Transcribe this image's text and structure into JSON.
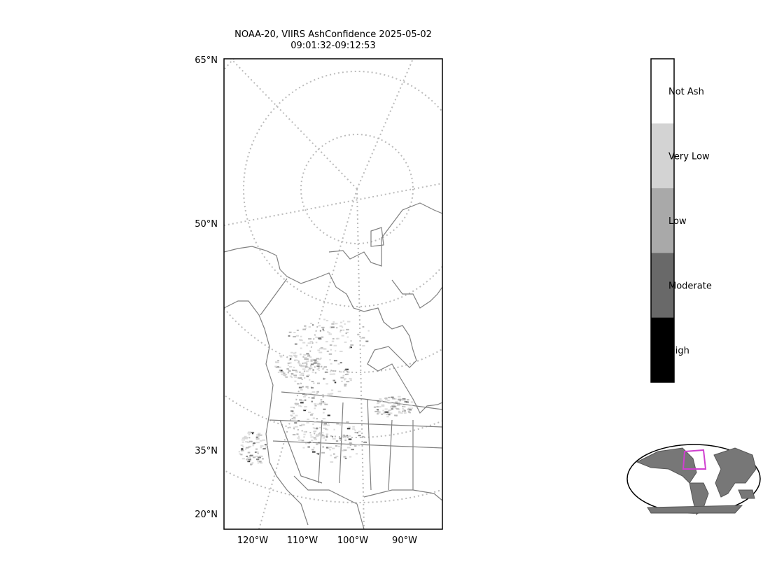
{
  "title": [
    "NOAA-20, VIIRS AshConfidence 2025-05-02",
    "09:01:32-09:12:53"
  ],
  "lat_labels": [
    "65°N",
    "50°N",
    "35°N",
    "20°N"
  ],
  "lon_labels": [
    "120°W",
    "110°W",
    "100°W",
    "90°W"
  ],
  "colorbar": {
    "labels": [
      "Not Ash",
      "Very Low",
      "Low",
      "Moderate",
      "High"
    ],
    "colors": [
      "#ffffff",
      "#d3d3d3",
      "#a9a9a9",
      "#696969",
      "#000000"
    ]
  }
}
